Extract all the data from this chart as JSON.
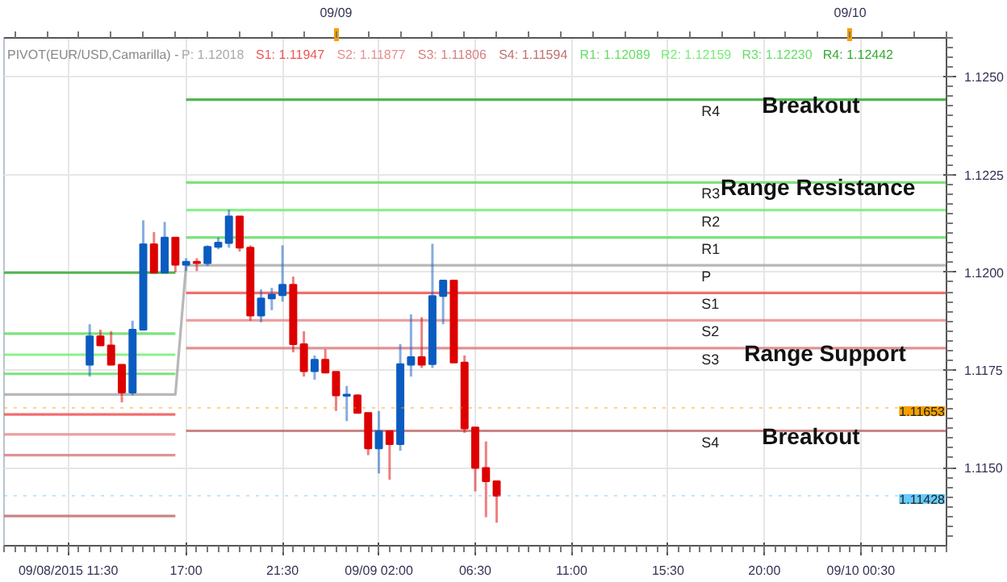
{
  "chart_data": {
    "type": "candlestick",
    "title": "PIVOT(EUR/USD,Camarilla) -",
    "xlim": [
      "2015-09-08T08:30",
      "2015-09-10T04:30"
    ],
    "ylim": [
      1.113,
      1.126
    ],
    "xticks": [
      {
        "value": "2015-09-08T11:30",
        "label": "09/08/2015 11:30"
      },
      {
        "value": "2015-09-08T17:00",
        "label": "17:00"
      },
      {
        "value": "2015-09-08T21:30",
        "label": "21:30"
      },
      {
        "value": "2015-09-09T02:00",
        "label": "09/09 02:00"
      },
      {
        "value": "2015-09-09T06:30",
        "label": "06:30"
      },
      {
        "value": "2015-09-09T11:00",
        "label": "11:00"
      },
      {
        "value": "2015-09-09T15:30",
        "label": "15:30"
      },
      {
        "value": "2015-09-09T20:00",
        "label": "20:00"
      },
      {
        "value": "2015-09-10T00:30",
        "label": "09/10 00:30"
      }
    ],
    "x2lim": [
      "2015-09-08T08:30",
      "2015-09-10T04:30"
    ],
    "x2ticks": [
      {
        "value": "2015-09-09T00:00",
        "label": "09/09"
      },
      {
        "value": "2015-09-10T00:00",
        "label": "09/10"
      }
    ],
    "yticks": [
      {
        "value": 1.115,
        "label": "1.1150"
      },
      {
        "value": 1.1175,
        "label": "1.1175"
      },
      {
        "value": 1.12,
        "label": "1.1200"
      },
      {
        "value": 1.1225,
        "label": "1.1225"
      },
      {
        "value": 1.125,
        "label": "1.1250"
      }
    ],
    "grid": true,
    "annotations": [
      "P: 1.12018",
      "S1: 1.11947",
      "S2: 1.11877",
      "S3: 1.11806",
      "S4: 1.11594",
      "R1: 1.12089",
      "R2: 1.12159",
      "R3: 1.12230",
      "R4: 1.12442",
      {
        "text": "Breakout",
        "x": "2015-09-09T22:10",
        "y": 1.12442
      },
      {
        "text": "Range Resistance",
        "x": "2015-09-09T22:30",
        "y": 1.1223
      },
      {
        "text": "Range Support",
        "x": "2015-09-09T22:50",
        "y": 1.11806
      },
      {
        "text": "Breakout",
        "x": "2015-09-09T22:10",
        "y": 1.11594
      }
    ],
    "ref_lines": [
      {
        "axis": "y",
        "value": 1.11653,
        "label": "1.11653",
        "color": "#f5a000",
        "line_style": "dotted"
      },
      {
        "axis": "y",
        "value": 1.11428,
        "label": "1.11428",
        "color": "#66ccff",
        "line_style": "dotted"
      }
    ],
    "series": [
      {
        "type": "line",
        "name": "P",
        "color": "#aaaaaa",
        "x": [
          "2015-09-08T08:30",
          "2015-09-08T16:30",
          "2015-09-08T17:00",
          "2015-09-10T04:30"
        ],
        "values": [
          1.11687,
          1.11687,
          1.12018,
          1.12018
        ]
      },
      {
        "type": "line",
        "name": "S1",
        "color": "#ee5555",
        "x": [
          "2015-09-08T08:30",
          "2015-09-08T16:30",
          "2015-09-08T16:45",
          "2015-09-08T17:00",
          "2015-09-10T04:30"
        ],
        "values": [
          1.11636,
          1.11636,
          null,
          1.11947,
          1.11947
        ]
      },
      {
        "type": "line",
        "name": "S2",
        "color": "#e88f8f",
        "x": [
          "2015-09-08T08:30",
          "2015-09-08T16:30",
          "2015-09-08T16:45",
          "2015-09-08T17:00",
          "2015-09-10T04:30"
        ],
        "values": [
          1.11585,
          1.11585,
          null,
          1.11877,
          1.11877
        ]
      },
      {
        "type": "line",
        "name": "S3",
        "color": "#d98080",
        "x": [
          "2015-09-08T08:30",
          "2015-09-08T16:30",
          "2015-09-08T16:45",
          "2015-09-08T17:00",
          "2015-09-10T04:30"
        ],
        "values": [
          1.11532,
          1.11532,
          null,
          1.11806,
          1.11806
        ]
      },
      {
        "type": "line",
        "name": "S4",
        "color": "#c07070",
        "x": [
          "2015-09-08T08:30",
          "2015-09-08T16:30",
          "2015-09-08T16:45",
          "2015-09-08T17:00",
          "2015-09-10T04:30"
        ],
        "values": [
          1.11376,
          1.11376,
          null,
          1.11594,
          1.11594
        ]
      },
      {
        "type": "line",
        "name": "R1",
        "color": "#66dd66",
        "x": [
          "2015-09-08T08:30",
          "2015-09-08T16:30",
          "2015-09-08T16:45",
          "2015-09-08T17:00",
          "2015-09-10T04:30"
        ],
        "values": [
          1.1174,
          1.1174,
          null,
          1.12089,
          1.12089
        ]
      },
      {
        "type": "line",
        "name": "R2",
        "color": "#77ee77",
        "x": [
          "2015-09-08T08:30",
          "2015-09-08T16:30",
          "2015-09-08T16:45",
          "2015-09-08T17:00",
          "2015-09-10T04:30"
        ],
        "values": [
          1.11789,
          1.11789,
          null,
          1.12159,
          1.12159
        ]
      },
      {
        "type": "line",
        "name": "R3",
        "color": "#66dd66",
        "x": [
          "2015-09-08T08:30",
          "2015-09-08T16:30",
          "2015-09-08T16:45",
          "2015-09-08T17:00",
          "2015-09-10T04:30"
        ],
        "values": [
          1.11843,
          1.11843,
          null,
          1.1223,
          1.1223
        ]
      },
      {
        "type": "line",
        "name": "R4",
        "color": "#33aa33",
        "x": [
          "2015-09-08T08:30",
          "2015-09-08T16:30",
          "2015-09-08T16:45",
          "2015-09-08T17:00",
          "2015-09-10T04:30"
        ],
        "values": [
          1.11999,
          1.11999,
          null,
          1.12442,
          1.12442
        ]
      },
      {
        "x": [
          "2015-09-08T12:30",
          "2015-09-08T13:00",
          "2015-09-08T13:30",
          "2015-09-08T14:00",
          "2015-09-08T14:30",
          "2015-09-08T15:00",
          "2015-09-08T15:30",
          "2015-09-08T16:00",
          "2015-09-08T16:30",
          "2015-09-08T17:00",
          "2015-09-08T17:30",
          "2015-09-08T18:00",
          "2015-09-08T18:30",
          "2015-09-08T19:00",
          "2015-09-08T19:30",
          "2015-09-08T20:00",
          "2015-09-08T20:30",
          "2015-09-08T21:00",
          "2015-09-08T21:30",
          "2015-09-08T22:00",
          "2015-09-08T22:30",
          "2015-09-08T23:00",
          "2015-09-08T23:30",
          "2015-09-09T00:00",
          "2015-09-09T00:30",
          "2015-09-09T01:00",
          "2015-09-09T01:30",
          "2015-09-09T02:00",
          "2015-09-09T02:30",
          "2015-09-09T03:00",
          "2015-09-09T03:30",
          "2015-09-09T04:00",
          "2015-09-09T04:30",
          "2015-09-09T05:00",
          "2015-09-09T05:30",
          "2015-09-09T06:00",
          "2015-09-09T06:30",
          "2015-09-09T07:00",
          "2015-09-09T07:30"
        ],
        "ohlc": [
          [
            1.11763,
            1.11867,
            1.11733,
            1.11836
          ],
          [
            1.11836,
            1.11853,
            1.11813,
            1.11813
          ],
          [
            1.11813,
            1.11849,
            1.11763,
            1.11763
          ],
          [
            1.11763,
            1.11763,
            1.11667,
            1.11692
          ],
          [
            1.11692,
            1.11876,
            1.11685,
            1.11853
          ],
          [
            1.11853,
            1.12133,
            1.11853,
            1.12072
          ],
          [
            1.12072,
            1.12103,
            1.11999,
            1.11999
          ],
          [
            1.11999,
            1.12129,
            1.11999,
            1.12089
          ],
          [
            1.12089,
            1.12089,
            1.12,
            1.12019
          ],
          [
            1.12019,
            1.12036,
            1.12003,
            1.12027
          ],
          [
            1.12027,
            1.12036,
            1.12003,
            1.12024
          ],
          [
            1.12023,
            1.12069,
            1.12016,
            1.12065
          ],
          [
            1.12065,
            1.12089,
            1.12059,
            1.12076
          ],
          [
            1.12075,
            1.1216,
            1.12063,
            1.12143
          ],
          [
            1.12143,
            1.12143,
            1.12053,
            1.12063
          ],
          [
            1.12063,
            1.12069,
            1.11876,
            1.11889
          ],
          [
            1.11889,
            1.11956,
            1.11872,
            1.11933
          ],
          [
            1.11933,
            1.1196,
            1.11903,
            1.11943
          ],
          [
            1.11941,
            1.12069,
            1.11925,
            1.11968
          ],
          [
            1.11968,
            1.11989,
            1.11795,
            1.11816
          ],
          [
            1.11816,
            1.11849,
            1.11733,
            1.11747
          ],
          [
            1.11747,
            1.11787,
            1.11725,
            1.11776
          ],
          [
            1.11776,
            1.11803,
            1.11743,
            1.11743
          ],
          [
            1.11745,
            1.11745,
            1.11645,
            1.11685
          ],
          [
            1.11684,
            1.11709,
            1.11619,
            1.11687
          ],
          [
            1.11685,
            1.11688,
            1.1164,
            1.1164
          ],
          [
            1.1164,
            1.1164,
            1.11532,
            1.11549
          ],
          [
            1.11549,
            1.11645,
            1.11485,
            1.11593
          ],
          [
            1.11593,
            1.11593,
            1.11469,
            1.1156
          ],
          [
            1.1156,
            1.11816,
            1.11543,
            1.11765
          ],
          [
            1.11763,
            1.11892,
            1.11733,
            1.11783
          ],
          [
            1.11783,
            1.11885,
            1.11755,
            1.11763
          ],
          [
            1.11765,
            1.12073,
            1.11755,
            1.11939
          ],
          [
            1.11939,
            1.11979,
            1.11867,
            1.11979
          ],
          [
            1.11979,
            1.11979,
            1.11769,
            1.11769
          ],
          [
            1.11769,
            1.11787,
            1.11589,
            1.116
          ],
          [
            1.11603,
            1.11603,
            1.11439,
            1.11499
          ],
          [
            1.11499,
            1.11567,
            1.11373,
            1.11465
          ],
          [
            1.11465,
            1.11465,
            1.11359,
            1.11428
          ]
        ],
        "colors": [
          "#0b5cc0",
          "#dd0000",
          "#dd0000",
          "#dd0000",
          "#0b5cc0",
          "#0b5cc0",
          "#dd0000",
          "#0b5cc0",
          "#dd0000",
          "#0b5cc0",
          "#dd0000",
          "#0b5cc0",
          "#0b5cc0",
          "#0b5cc0",
          "#dd0000",
          "#dd0000",
          "#0b5cc0",
          "#0b5cc0",
          "#0b5cc0",
          "#dd0000",
          "#dd0000",
          "#0b5cc0",
          "#dd0000",
          "#dd0000",
          "#0b5cc0",
          "#dd0000",
          "#dd0000",
          "#0b5cc0",
          "#dd0000",
          "#0b5cc0",
          "#0b5cc0",
          "#dd0000",
          "#0b5cc0",
          "#0b5cc0",
          "#dd0000",
          "#dd0000",
          "#dd0000",
          "#dd0000",
          "#dd0000"
        ]
      }
    ]
  }
}
